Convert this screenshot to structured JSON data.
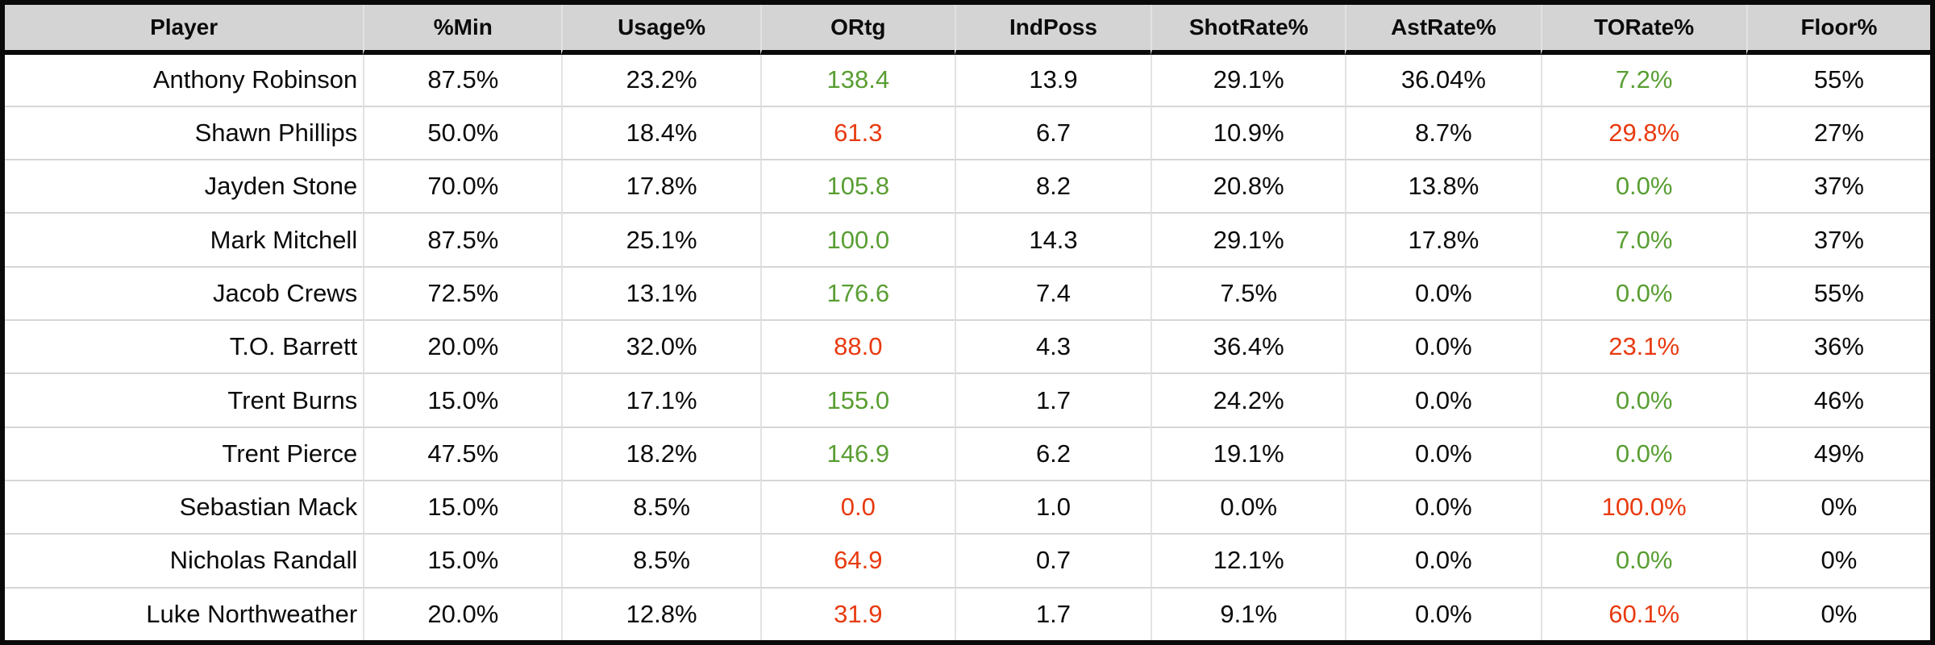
{
  "palette": {
    "green": "#599e33",
    "red": "#e83a10",
    "header_bg": "#d4d4d4",
    "border": "#0a0a0a",
    "text": "#0b0b0b",
    "col_line": "#e3e3e3",
    "header_col_line": "#e2e2e2",
    "row_line": "#d6d6d6"
  },
  "table": {
    "columns": [
      {
        "key": "player",
        "label": "Player"
      },
      {
        "key": "min",
        "label": "%Min"
      },
      {
        "key": "usage",
        "label": "Usage%"
      },
      {
        "key": "ortg",
        "label": "ORtg"
      },
      {
        "key": "indposs",
        "label": "IndPoss"
      },
      {
        "key": "shotrate",
        "label": "ShotRate%"
      },
      {
        "key": "astrate",
        "label": "AstRate%"
      },
      {
        "key": "torate",
        "label": "TORate%"
      },
      {
        "key": "floor",
        "label": "Floor%"
      }
    ],
    "rows": [
      {
        "player": "Anthony Robinson",
        "min": "87.5%",
        "usage": "23.2%",
        "ortg": "138.4",
        "ortg_color": "green",
        "indposs": "13.9",
        "shotrate": "29.1%",
        "astrate": "36.04%",
        "torate": "7.2%",
        "torate_color": "green",
        "floor": "55%"
      },
      {
        "player": "Shawn Phillips",
        "min": "50.0%",
        "usage": "18.4%",
        "ortg": "61.3",
        "ortg_color": "red",
        "indposs": "6.7",
        "shotrate": "10.9%",
        "astrate": "8.7%",
        "torate": "29.8%",
        "torate_color": "red",
        "floor": "27%"
      },
      {
        "player": "Jayden Stone",
        "min": "70.0%",
        "usage": "17.8%",
        "ortg": "105.8",
        "ortg_color": "green",
        "indposs": "8.2",
        "shotrate": "20.8%",
        "astrate": "13.8%",
        "torate": "0.0%",
        "torate_color": "green",
        "floor": "37%"
      },
      {
        "player": "Mark Mitchell",
        "min": "87.5%",
        "usage": "25.1%",
        "ortg": "100.0",
        "ortg_color": "green",
        "indposs": "14.3",
        "shotrate": "29.1%",
        "astrate": "17.8%",
        "torate": "7.0%",
        "torate_color": "green",
        "floor": "37%"
      },
      {
        "player": "Jacob Crews",
        "min": "72.5%",
        "usage": "13.1%",
        "ortg": "176.6",
        "ortg_color": "green",
        "indposs": "7.4",
        "shotrate": "7.5%",
        "astrate": "0.0%",
        "torate": "0.0%",
        "torate_color": "green",
        "floor": "55%"
      },
      {
        "player": "T.O. Barrett",
        "min": "20.0%",
        "usage": "32.0%",
        "ortg": "88.0",
        "ortg_color": "red",
        "indposs": "4.3",
        "shotrate": "36.4%",
        "astrate": "0.0%",
        "torate": "23.1%",
        "torate_color": "red",
        "floor": "36%"
      },
      {
        "player": "Trent Burns",
        "min": "15.0%",
        "usage": "17.1%",
        "ortg": "155.0",
        "ortg_color": "green",
        "indposs": "1.7",
        "shotrate": "24.2%",
        "astrate": "0.0%",
        "torate": "0.0%",
        "torate_color": "green",
        "floor": "46%"
      },
      {
        "player": "Trent Pierce",
        "min": "47.5%",
        "usage": "18.2%",
        "ortg": "146.9",
        "ortg_color": "green",
        "indposs": "6.2",
        "shotrate": "19.1%",
        "astrate": "0.0%",
        "torate": "0.0%",
        "torate_color": "green",
        "floor": "49%"
      },
      {
        "player": "Sebastian Mack",
        "min": "15.0%",
        "usage": "8.5%",
        "ortg": "0.0",
        "ortg_color": "red",
        "indposs": "1.0",
        "shotrate": "0.0%",
        "astrate": "0.0%",
        "torate": "100.0%",
        "torate_color": "red",
        "floor": "0%"
      },
      {
        "player": "Nicholas Randall",
        "min": "15.0%",
        "usage": "8.5%",
        "ortg": "64.9",
        "ortg_color": "red",
        "indposs": "0.7",
        "shotrate": "12.1%",
        "astrate": "0.0%",
        "torate": "0.0%",
        "torate_color": "green",
        "floor": "0%"
      },
      {
        "player": "Luke Northweather",
        "min": "20.0%",
        "usage": "12.8%",
        "ortg": "31.9",
        "ortg_color": "red",
        "indposs": "1.7",
        "shotrate": "9.1%",
        "astrate": "0.0%",
        "torate": "60.1%",
        "torate_color": "red",
        "floor": "0%"
      }
    ]
  }
}
